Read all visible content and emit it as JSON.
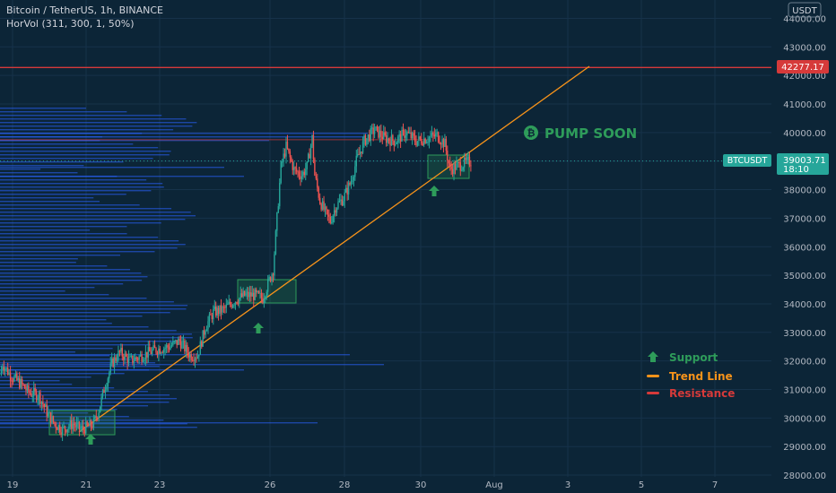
{
  "header": {
    "symbol_title": "Bitcoin / TetherUS, 1h, BINANCE",
    "indicator": "HorVol (311, 300, 1, 50%)"
  },
  "price_axis": {
    "currency": "USDT",
    "current_symbol": "BTCUSDT",
    "current_price": "39003.71",
    "countdown": "18:10",
    "resistance_label": "42277.17"
  },
  "annotation": {
    "pump_text": "PUMP SOON",
    "pump_symbol": "₿"
  },
  "legend": {
    "support_label": "Support",
    "trend_label": "Trend Line",
    "resistance_label": "Resistance"
  },
  "colors": {
    "background": "#0c2537",
    "up": "#26a69a",
    "down": "#ef5350",
    "support": "#2e9c5a",
    "trend": "#f7931a",
    "resistance": "#d63a3a",
    "volume_profile": "#2962ff"
  },
  "chart_data": {
    "type": "candlestick",
    "ylim": [
      27800,
      44500
    ],
    "y_ticks": [
      28000,
      29000,
      30000,
      31000,
      32000,
      33000,
      34000,
      35000,
      36000,
      37000,
      38000,
      39000,
      40000,
      41000,
      42000,
      43000,
      44000
    ],
    "x_ticks": [
      "19",
      "21",
      "23",
      "26",
      "28",
      "30",
      "Aug",
      "3",
      "5",
      "7"
    ],
    "resistance_level": 42277.17,
    "current_price": 39003.71,
    "trend_line": [
      {
        "x": "Jul 21",
        "y": 29500
      },
      {
        "x": "Aug 3",
        "y": 42300
      }
    ],
    "support_zones": [
      {
        "x": "Jul 20–21",
        "y_low": 29300,
        "y_high": 30100
      },
      {
        "x": "Jul 25–26",
        "y_low": 33900,
        "y_high": 34750
      },
      {
        "x": "Jul 30–31",
        "y_low": 38350,
        "y_high": 39150
      }
    ],
    "series_path": [
      {
        "t": 0,
        "p": 31500
      },
      {
        "t": 2,
        "p": 31900
      },
      {
        "t": 8,
        "p": 31500
      },
      {
        "t": 16,
        "p": 31200
      },
      {
        "t": 22,
        "p": 30900
      },
      {
        "t": 30,
        "p": 30800
      },
      {
        "t": 36,
        "p": 30200
      },
      {
        "t": 42,
        "p": 29800
      },
      {
        "t": 48,
        "p": 29600
      },
      {
        "t": 56,
        "p": 29800
      },
      {
        "t": 62,
        "p": 29600
      },
      {
        "t": 68,
        "p": 29700
      },
      {
        "t": 72,
        "p": 29800
      },
      {
        "t": 76,
        "p": 30300
      },
      {
        "t": 80,
        "p": 31000
      },
      {
        "t": 86,
        "p": 31900
      },
      {
        "t": 92,
        "p": 32300
      },
      {
        "t": 100,
        "p": 32000
      },
      {
        "t": 110,
        "p": 32200
      },
      {
        "t": 120,
        "p": 32400
      },
      {
        "t": 130,
        "p": 32500
      },
      {
        "t": 138,
        "p": 32700
      },
      {
        "t": 146,
        "p": 32200
      },
      {
        "t": 152,
        "p": 32200
      },
      {
        "t": 158,
        "p": 33200
      },
      {
        "t": 164,
        "p": 33700
      },
      {
        "t": 172,
        "p": 33800
      },
      {
        "t": 180,
        "p": 34100
      },
      {
        "t": 188,
        "p": 34300
      },
      {
        "t": 196,
        "p": 34300
      },
      {
        "t": 202,
        "p": 34200
      },
      {
        "t": 206,
        "p": 34700
      },
      {
        "t": 210,
        "p": 35200
      },
      {
        "t": 213,
        "p": 37000
      },
      {
        "t": 216,
        "p": 38800
      },
      {
        "t": 220,
        "p": 39500
      },
      {
        "t": 226,
        "p": 38700
      },
      {
        "t": 232,
        "p": 38500
      },
      {
        "t": 236,
        "p": 38800
      },
      {
        "t": 240,
        "p": 39800
      },
      {
        "t": 242,
        "p": 38500
      },
      {
        "t": 246,
        "p": 37600
      },
      {
        "t": 250,
        "p": 37200
      },
      {
        "t": 254,
        "p": 36900
      },
      {
        "t": 258,
        "p": 37400
      },
      {
        "t": 264,
        "p": 37700
      },
      {
        "t": 270,
        "p": 38300
      },
      {
        "t": 274,
        "p": 39000
      },
      {
        "t": 280,
        "p": 39700
      },
      {
        "t": 288,
        "p": 40100
      },
      {
        "t": 296,
        "p": 39800
      },
      {
        "t": 304,
        "p": 39700
      },
      {
        "t": 312,
        "p": 40000
      },
      {
        "t": 320,
        "p": 39700
      },
      {
        "t": 328,
        "p": 39800
      },
      {
        "t": 336,
        "p": 39900
      },
      {
        "t": 342,
        "p": 39600
      },
      {
        "t": 346,
        "p": 38700
      },
      {
        "t": 350,
        "p": 38800
      },
      {
        "t": 356,
        "p": 38900
      },
      {
        "t": 362,
        "p": 39000
      }
    ]
  }
}
